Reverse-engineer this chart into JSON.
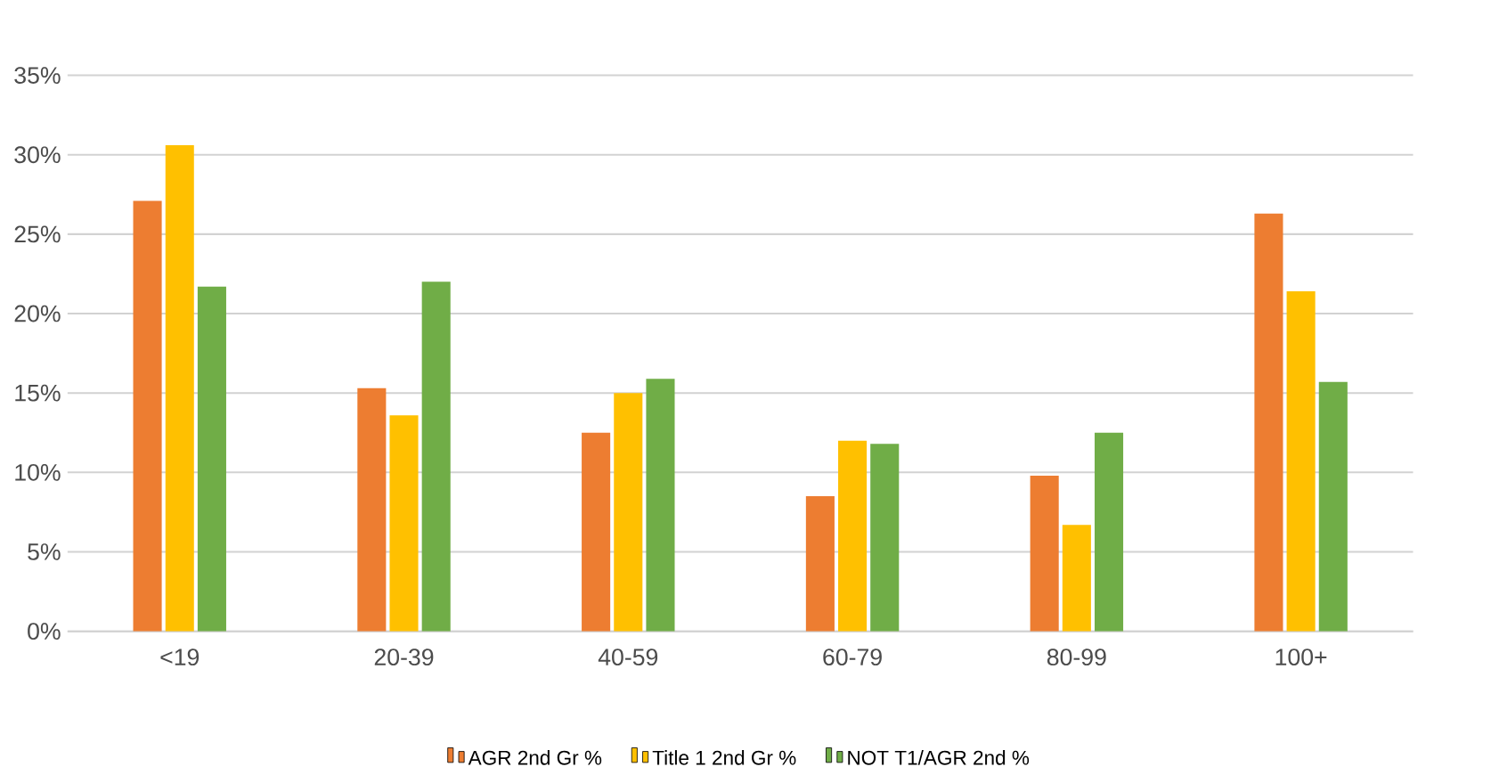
{
  "chart_data": {
    "type": "bar",
    "categories": [
      "<19",
      "20-39",
      "40-59",
      "60-79",
      "80-99",
      "100+"
    ],
    "series": [
      {
        "name": "AGR 2nd Gr %",
        "color": "#ed7d31",
        "values": [
          27.1,
          15.3,
          12.5,
          8.5,
          9.8,
          26.3
        ]
      },
      {
        "name": "Title 1 2nd Gr %",
        "color": "#ffc000",
        "values": [
          30.6,
          13.6,
          15.0,
          12.0,
          6.7,
          21.4
        ]
      },
      {
        "name": "NOT T1/AGR 2nd %",
        "color": "#70ad47",
        "values": [
          21.7,
          22.0,
          15.9,
          11.8,
          12.5,
          15.7
        ]
      }
    ],
    "ylim": [
      0,
      35
    ],
    "yticks": [
      {
        "value": 0,
        "label": "0%"
      },
      {
        "value": 5,
        "label": "5%"
      },
      {
        "value": 10,
        "label": "10%"
      },
      {
        "value": 15,
        "label": "15%"
      },
      {
        "value": 20,
        "label": "20%"
      },
      {
        "value": 25,
        "label": "25%"
      },
      {
        "value": 30,
        "label": "30%"
      },
      {
        "value": 35,
        "label": "35%"
      }
    ],
    "grid": "y",
    "legend": "bottom"
  }
}
